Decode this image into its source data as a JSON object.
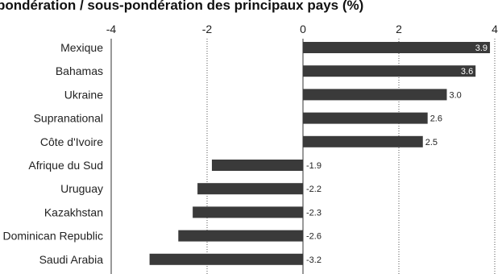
{
  "chart_data": {
    "type": "bar",
    "orientation": "horizontal",
    "title": "pondération / sous-pondération des principaux pays (%)",
    "xlabel": "",
    "ylabel": "",
    "xlim": [
      -4,
      4
    ],
    "xticks": [
      "-4",
      "-2",
      "0",
      "2",
      "4"
    ],
    "grid": "vertical dotted",
    "bar_color": "#3a3a3a",
    "categories": [
      "Mexique",
      "Bahamas",
      "Ukraine",
      "Supranational",
      "Côte d'Ivoire",
      "Afrique du Sud",
      "Uruguay",
      "Kazakhstan",
      "Dominican Republic",
      "Saudi Arabia"
    ],
    "values": [
      3.9,
      3.6,
      3.0,
      2.6,
      2.5,
      -1.9,
      -2.2,
      -2.3,
      -2.6,
      -3.2
    ],
    "value_labels": [
      "3.9",
      "3.6",
      "3.0",
      "2.6",
      "2.5",
      "-1.9",
      "-2.2",
      "-2.3",
      "-2.6",
      "-3.2"
    ],
    "value_label_inside": [
      true,
      true,
      false,
      false,
      false,
      false,
      false,
      false,
      false,
      false
    ]
  }
}
